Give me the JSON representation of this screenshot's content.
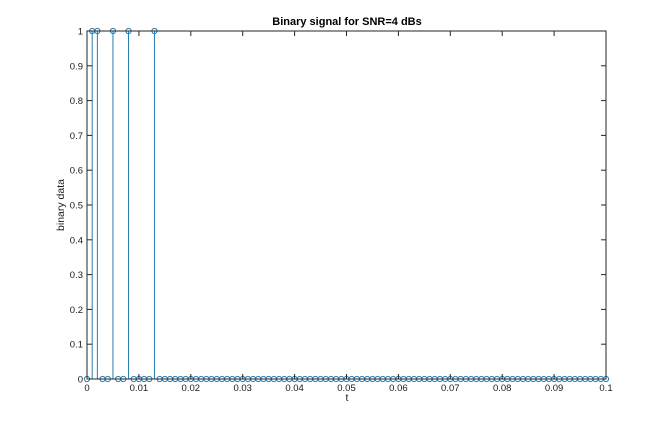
{
  "chart_data": {
    "type": "stem",
    "title": "Binary signal for SNR=4 dBs",
    "xlabel": "t",
    "ylabel": "binary data",
    "xlim": [
      0,
      0.1
    ],
    "ylim": [
      0,
      1
    ],
    "xticks": [
      0,
      0.01,
      0.02,
      0.03,
      0.04,
      0.05,
      0.06,
      0.07,
      0.08,
      0.09,
      0.1
    ],
    "xtick_labels": [
      "0",
      "0.01",
      "0.02",
      "0.03",
      "0.04",
      "0.05",
      "0.06",
      "0.07",
      "0.08",
      "0.09",
      "0.1"
    ],
    "yticks": [
      0,
      0.1,
      0.2,
      0.3,
      0.4,
      0.5,
      0.6,
      0.7,
      0.8,
      0.9,
      1
    ],
    "ytick_labels": [
      "0",
      "0.1",
      "0.2",
      "0.3",
      "0.4",
      "0.5",
      "0.6",
      "0.7",
      "0.8",
      "0.9",
      "1"
    ],
    "grid": false,
    "series_color": "#2a7bb0",
    "x_step": 0.001,
    "values": [
      0,
      1,
      1,
      0,
      0,
      1,
      0,
      0,
      1,
      0,
      0,
      0,
      0,
      1,
      0,
      0,
      0,
      0,
      0,
      0,
      0,
      0,
      0,
      0,
      0,
      0,
      0,
      0,
      0,
      0,
      0,
      0,
      0,
      0,
      0,
      0,
      0,
      0,
      0,
      0,
      0,
      0,
      0,
      0,
      0,
      0,
      0,
      0,
      0,
      0,
      0,
      0,
      0,
      0,
      0,
      0,
      0,
      0,
      0,
      0,
      0,
      0,
      0,
      0,
      0,
      0,
      0,
      0,
      0,
      0,
      0,
      0,
      0,
      0,
      0,
      0,
      0,
      0,
      0,
      0,
      0,
      0,
      0,
      0,
      0,
      0,
      0,
      0,
      0,
      0,
      0,
      0,
      0,
      0,
      0,
      0,
      0,
      0,
      0,
      0,
      0
    ]
  }
}
